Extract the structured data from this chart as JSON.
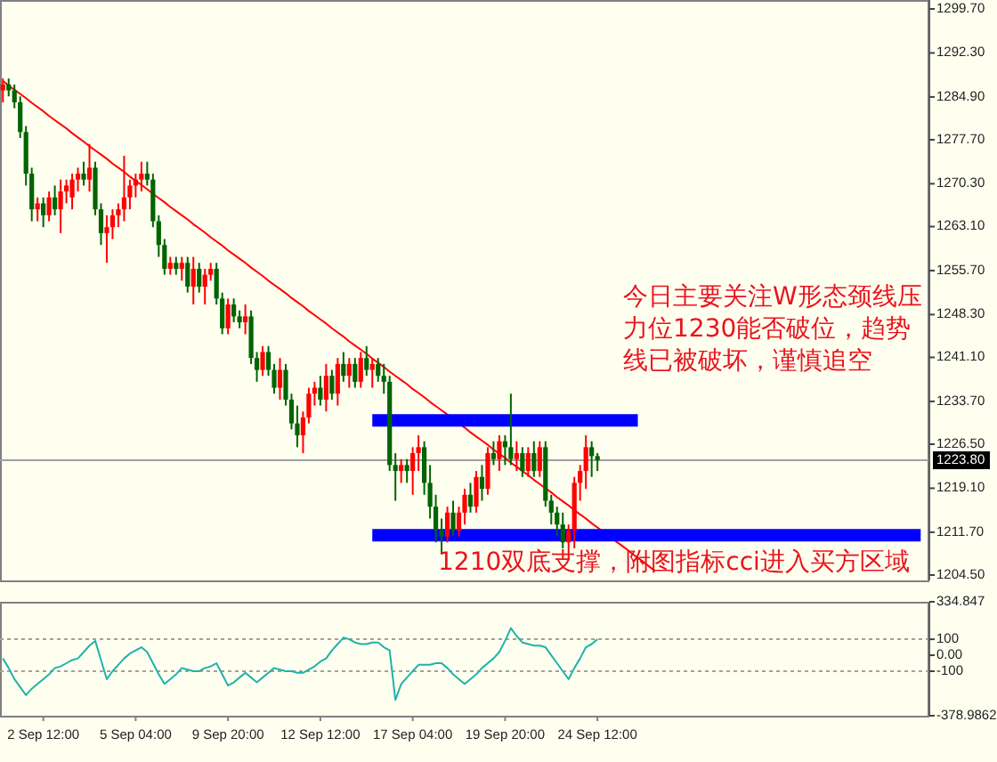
{
  "chart_data": [
    {
      "type": "candlestick",
      "tick_labels": "y",
      "categories": [
        null,
        null,
        null,
        null,
        null,
        null,
        null,
        null,
        null,
        null,
        null,
        null,
        null,
        null,
        null,
        null,
        null,
        null,
        null,
        null,
        null,
        null,
        null,
        null,
        null,
        null,
        null,
        null,
        null,
        null,
        null,
        null,
        null,
        null,
        null,
        null,
        null,
        null,
        null,
        null,
        null,
        null,
        null,
        null,
        null,
        null,
        null,
        null,
        null,
        null,
        null,
        null,
        null,
        null,
        null,
        null,
        null,
        null,
        null,
        null,
        null,
        null,
        null,
        null,
        null,
        null,
        null,
        null,
        null,
        null,
        null,
        null,
        null,
        null,
        null,
        null,
        null,
        null,
        null,
        null,
        null,
        null,
        null,
        null,
        null,
        null,
        null,
        null,
        null,
        null,
        null,
        null,
        null,
        null,
        null,
        null,
        null,
        null,
        null,
        null,
        null,
        null,
        null,
        null,
        null,
        null,
        null,
        null,
        null,
        null,
        null,
        null,
        null,
        null,
        null,
        null,
        null,
        null,
        null,
        null,
        null,
        null,
        null,
        null,
        null,
        null,
        null,
        null,
        null,
        null,
        null,
        null,
        null,
        null,
        null,
        null,
        null,
        null,
        null,
        null,
        null,
        null,
        null,
        null,
        null,
        null,
        null,
        null,
        null,
        null,
        null,
        null,
        null,
        null,
        null,
        null,
        null,
        null,
        null,
        null,
        null
      ],
      "ohlc": [
        [
          1286,
          1288,
          1284,
          1287
        ],
        [
          1287,
          1288,
          1285,
          1286
        ],
        [
          1286,
          1287,
          1283,
          1284
        ],
        [
          1284,
          1285,
          1278,
          1279
        ],
        [
          1279,
          1280,
          1270,
          1272
        ],
        [
          1272,
          1273,
          1264,
          1266
        ],
        [
          1266,
          1268,
          1264,
          1267
        ],
        [
          1267,
          1268,
          1263,
          1265
        ],
        [
          1265,
          1269,
          1264,
          1268
        ],
        [
          1268,
          1270,
          1265,
          1266
        ],
        [
          1266,
          1271,
          1262,
          1269
        ],
        [
          1269,
          1271,
          1267,
          1270
        ],
        [
          1268,
          1272,
          1266,
          1271
        ],
        [
          1271,
          1273,
          1269,
          1272
        ],
        [
          1272,
          1274,
          1270,
          1271
        ],
        [
          1271,
          1277,
          1269,
          1273
        ],
        [
          1273,
          1274,
          1265,
          1266
        ],
        [
          1266,
          1267,
          1260,
          1262
        ],
        [
          1262,
          1265,
          1257,
          1263
        ],
        [
          1263,
          1266,
          1261,
          1265
        ],
        [
          1265,
          1267,
          1263,
          1266
        ],
        [
          1266,
          1275,
          1264,
          1268
        ],
        [
          1268,
          1271,
          1266,
          1270
        ],
        [
          1270,
          1272,
          1268,
          1271
        ],
        [
          1271,
          1274,
          1269,
          1272
        ],
        [
          1272,
          1274,
          1270,
          1271
        ],
        [
          1271,
          1272,
          1263,
          1264
        ],
        [
          1264,
          1265,
          1258,
          1260
        ],
        [
          1260,
          1261,
          1255,
          1256
        ],
        [
          1256,
          1258,
          1255,
          1257
        ],
        [
          1257,
          1258,
          1255,
          1256
        ],
        [
          1256,
          1258,
          1254,
          1257
        ],
        [
          1257,
          1258,
          1252,
          1253
        ],
        [
          1253,
          1258,
          1250,
          1256
        ],
        [
          1256,
          1257,
          1252,
          1253
        ],
        [
          1253,
          1256,
          1250,
          1255
        ],
        [
          1255,
          1257,
          1254,
          1256
        ],
        [
          1256,
          1257,
          1250,
          1251
        ],
        [
          1251,
          1252,
          1245,
          1246
        ],
        [
          1246,
          1251,
          1245,
          1250
        ],
        [
          1250,
          1251,
          1247,
          1248
        ],
        [
          1248,
          1249,
          1246,
          1247
        ],
        [
          1247,
          1250,
          1245,
          1248
        ],
        [
          1248,
          1249,
          1240,
          1241
        ],
        [
          1241,
          1242,
          1237,
          1239
        ],
        [
          1239,
          1243,
          1238,
          1242
        ],
        [
          1242,
          1243,
          1238,
          1239
        ],
        [
          1239,
          1240,
          1235,
          1236
        ],
        [
          1236,
          1241,
          1234,
          1239
        ],
        [
          1239,
          1240,
          1233,
          1234
        ],
        [
          1234,
          1235,
          1229,
          1230
        ],
        [
          1230,
          1233,
          1226,
          1228
        ],
        [
          1228,
          1232,
          1225,
          1231
        ],
        [
          1231,
          1236,
          1230,
          1235
        ],
        [
          1235,
          1237,
          1233,
          1236
        ],
        [
          1236,
          1238,
          1233,
          1234
        ],
        [
          1234,
          1240,
          1232,
          1238
        ],
        [
          1238,
          1239,
          1234,
          1235
        ],
        [
          1235,
          1241,
          1233,
          1240
        ],
        [
          1240,
          1242,
          1237,
          1238
        ],
        [
          1238,
          1241,
          1236,
          1240
        ],
        [
          1240,
          1241,
          1236,
          1237
        ],
        [
          1237,
          1242,
          1236,
          1241
        ],
        [
          1241,
          1243,
          1238,
          1239
        ],
        [
          1239,
          1241,
          1236,
          1240
        ],
        [
          1240,
          1241,
          1237,
          1238
        ],
        [
          1238,
          1240,
          1235,
          1237
        ],
        [
          1237,
          1238,
          1222,
          1223
        ],
        [
          1223,
          1225,
          1217,
          1222
        ],
        [
          1222,
          1224,
          1220,
          1223
        ],
        [
          1223,
          1224,
          1220,
          1222
        ],
        [
          1222,
          1226,
          1218,
          1225
        ],
        [
          1225,
          1228,
          1222,
          1226
        ],
        [
          1226,
          1227,
          1218,
          1220
        ],
        [
          1220,
          1223,
          1214,
          1216
        ],
        [
          1216,
          1218,
          1210,
          1212
        ],
        [
          1212,
          1214,
          1208,
          1211
        ],
        [
          1211,
          1216,
          1210,
          1215
        ],
        [
          1215,
          1217,
          1211,
          1212
        ],
        [
          1212,
          1216,
          1211,
          1215
        ],
        [
          1215,
          1219,
          1213,
          1218
        ],
        [
          1218,
          1220,
          1215,
          1216
        ],
        [
          1216,
          1222,
          1215,
          1221
        ],
        [
          1221,
          1223,
          1217,
          1219
        ],
        [
          1219,
          1226,
          1218,
          1225
        ],
        [
          1225,
          1227,
          1223,
          1224
        ],
        [
          1224,
          1228,
          1222,
          1227
        ],
        [
          1227,
          1228,
          1223,
          1226
        ],
        [
          1226,
          1235,
          1223,
          1224
        ],
        [
          1224,
          1227,
          1222,
          1225
        ],
        [
          1225,
          1226,
          1221,
          1222
        ],
        [
          1222,
          1226,
          1221,
          1225
        ],
        [
          1225,
          1227,
          1221,
          1222
        ],
        [
          1222,
          1227,
          1221,
          1226
        ],
        [
          1226,
          1227,
          1216,
          1217
        ],
        [
          1217,
          1218,
          1213,
          1215
        ],
        [
          1215,
          1216,
          1211,
          1213
        ],
        [
          1213,
          1215,
          1209,
          1210
        ],
        [
          1210,
          1213,
          1207,
          1212
        ],
        [
          1212,
          1221,
          1209,
          1220
        ],
        [
          1220,
          1223,
          1217,
          1222
        ],
        [
          1222,
          1228,
          1219,
          1226
        ],
        [
          1226,
          1227,
          1221,
          1224.5
        ],
        [
          1224.5,
          1225,
          1222,
          1223.8
        ],
        null,
        null,
        null,
        null,
        null,
        null,
        null,
        null,
        null,
        null,
        null,
        null,
        null,
        null,
        null,
        null,
        null,
        null,
        null,
        null,
        null,
        null,
        null,
        null,
        null,
        null,
        null,
        null,
        null,
        null,
        null,
        null,
        null,
        null,
        null,
        null,
        null,
        null,
        null,
        null,
        null,
        null,
        null,
        null,
        null,
        null,
        null,
        null,
        null,
        null,
        null,
        null,
        null,
        null,
        null,
        null,
        null
      ],
      "colors": [
        "#ff0000",
        "#006400",
        "#006400",
        "#006400",
        "#006400",
        "#006400",
        "#ff0000",
        "#006400",
        "#ff0000",
        "#006400",
        "#ff0000",
        "#ff0000",
        "#ff0000",
        "#ff0000",
        "#006400",
        "#ff0000",
        "#006400",
        "#006400",
        "#ff0000",
        "#ff0000",
        "#ff0000",
        "#ff0000",
        "#ff0000",
        "#ff0000",
        "#ff0000",
        "#006400",
        "#006400",
        "#006400",
        "#006400",
        "#ff0000",
        "#006400",
        "#ff0000",
        "#006400",
        "#ff0000",
        "#006400",
        "#ff0000",
        "#ff0000",
        "#006400",
        "#006400",
        "#ff0000",
        "#006400",
        "#006400",
        "#ff0000",
        "#006400",
        "#006400",
        "#ff0000",
        "#006400",
        "#006400",
        "#ff0000",
        "#006400",
        "#006400",
        "#006400",
        "#ff0000",
        "#ff0000",
        "#ff0000",
        "#006400",
        "#ff0000",
        "#006400",
        "#ff0000",
        "#006400",
        "#ff0000",
        "#006400",
        "#ff0000",
        "#006400",
        "#ff0000",
        "#006400",
        "#006400",
        "#006400",
        "#006400",
        "#ff0000",
        "#006400",
        "#ff0000",
        "#ff0000",
        "#006400",
        "#006400",
        "#006400",
        "#006400",
        "#ff0000",
        "#006400",
        "#ff0000",
        "#ff0000",
        "#006400",
        "#ff0000",
        "#006400",
        "#ff0000",
        "#006400",
        "#ff0000",
        "#006400",
        "#006400",
        "#ff0000",
        "#006400",
        "#ff0000",
        "#006400",
        "#ff0000",
        "#006400",
        "#006400",
        "#006400",
        "#006400",
        "#ff0000",
        "#ff0000",
        "#ff0000",
        "#ff0000",
        "#006400",
        "#006400",
        null,
        null,
        null,
        null,
        null,
        null,
        null,
        null,
        null,
        null,
        null,
        null,
        null,
        null,
        null,
        null,
        null,
        null,
        null,
        null,
        null,
        null,
        null,
        null,
        null,
        null,
        null,
        null,
        null,
        null,
        null,
        null,
        null,
        null,
        null,
        null,
        null,
        null,
        null,
        null,
        null,
        null,
        null,
        null,
        null,
        null,
        null,
        null,
        null,
        null,
        null,
        null,
        null,
        null,
        null,
        null,
        null
      ],
      "series": [
        {
          "type": "line",
          "color": "#ff0000",
          "values": [
            1287.6,
            1286.8,
            1286.1,
            1285.4,
            1284.7,
            1283.9,
            1283.2,
            1282.5,
            1281.7,
            1281.0,
            1280.3,
            1279.6,
            1278.8,
            1278.1,
            1277.4,
            1276.6,
            1275.9,
            1275.2,
            1274.5,
            1273.7,
            1273.0,
            1272.3,
            1271.5,
            1270.8,
            1270.1,
            1269.4,
            1268.6,
            1267.9,
            1267.2,
            1266.4,
            1265.7,
            1265.0,
            1264.3,
            1263.5,
            1262.8,
            1262.1,
            1261.3,
            1260.6,
            1259.9,
            1259.1,
            1258.4,
            1257.7,
            1257.0,
            1256.2,
            1255.5,
            1254.8,
            1254.0,
            1253.3,
            1252.6,
            1251.9,
            1251.1,
            1250.4,
            1249.7,
            1248.9,
            1248.2,
            1247.5,
            1246.8,
            1246.0,
            1245.3,
            1244.6,
            1243.8,
            1243.1,
            1242.4,
            1241.7,
            1240.9,
            1240.2,
            1239.5,
            1238.7,
            1238.0,
            1237.3,
            1236.6,
            1235.8,
            1235.1,
            1234.4,
            1233.6,
            1232.9,
            1232.2,
            1231.5,
            1230.7,
            1230.0,
            1229.3,
            1228.5,
            1227.8,
            1227.1,
            1226.4,
            1225.6,
            1224.9,
            1224.2,
            1223.4,
            1222.7,
            1222.0,
            1221.3,
            1220.5,
            1219.8,
            1219.1,
            1218.4,
            1217.6,
            1216.9,
            1216.2,
            1215.4,
            1214.7,
            1214.0,
            1213.2,
            1212.5,
            1211.8,
            1211.1,
            1210.3,
            1209.6,
            1208.9,
            1208.1,
            1207.4,
            1206.7,
            1205.9,
            1205.2,
            null,
            null,
            null,
            null,
            null,
            null,
            null,
            null,
            null,
            null,
            null,
            null,
            null,
            null,
            null,
            null,
            null,
            null,
            null,
            null,
            null,
            null,
            null,
            null,
            null,
            null,
            null,
            null,
            null,
            null,
            null,
            null,
            null,
            null,
            null,
            null,
            null,
            null,
            null,
            null,
            null,
            null,
            null,
            null,
            null,
            null,
            null
          ]
        },
        {
          "type": "line",
          "color": "#0000ff",
          "values": [
            null,
            null,
            null,
            null,
            null,
            null,
            null,
            null,
            null,
            null,
            null,
            null,
            null,
            null,
            null,
            null,
            null,
            null,
            null,
            null,
            null,
            null,
            null,
            null,
            null,
            null,
            null,
            null,
            null,
            null,
            null,
            null,
            null,
            null,
            null,
            null,
            null,
            null,
            null,
            null,
            null,
            null,
            null,
            null,
            null,
            null,
            null,
            null,
            null,
            null,
            null,
            null,
            null,
            null,
            null,
            null,
            null,
            null,
            null,
            null,
            null,
            null,
            null,
            null,
            1230.5,
            1230.5,
            1230.5,
            1230.5,
            1230.5,
            1230.5,
            1230.5,
            1230.5,
            1230.5,
            1230.5,
            1230.5,
            1230.5,
            1230.5,
            1230.5,
            1230.5,
            1230.5,
            1230.5,
            1230.5,
            1230.5,
            1230.5,
            1230.5,
            1230.5,
            1230.5,
            1230.5,
            1230.5,
            1230.5,
            1230.5,
            1230.5,
            1230.5,
            1230.5,
            1230.5,
            1230.5,
            1230.5,
            1230.5,
            1230.5,
            1230.5,
            1230.5,
            1230.5,
            1230.5,
            1230.5,
            1230.5,
            1230.5,
            1230.5,
            1230.5,
            1230.5,
            1230.5,
            1230.5,
            null,
            null,
            null,
            null,
            null,
            null,
            null,
            null,
            null,
            null,
            null,
            null,
            null,
            null,
            null,
            null,
            null,
            null,
            null,
            null,
            null,
            null,
            null,
            null,
            null,
            null,
            null,
            null,
            null,
            null,
            null,
            null,
            null,
            null,
            null,
            null,
            null,
            null,
            null,
            null,
            null,
            null,
            null,
            null,
            null,
            null,
            null,
            null,
            null,
            null
          ]
        },
        {
          "type": "line",
          "color": "#0000ff",
          "values": [
            null,
            null,
            null,
            null,
            null,
            null,
            null,
            null,
            null,
            null,
            null,
            null,
            null,
            null,
            null,
            null,
            null,
            null,
            null,
            null,
            null,
            null,
            null,
            null,
            null,
            null,
            null,
            null,
            null,
            null,
            null,
            null,
            null,
            null,
            null,
            null,
            null,
            null,
            null,
            null,
            null,
            null,
            null,
            null,
            null,
            null,
            null,
            null,
            null,
            null,
            null,
            null,
            null,
            null,
            null,
            null,
            null,
            null,
            null,
            null,
            null,
            null,
            null,
            null,
            1211.2,
            1211.2,
            1211.2,
            1211.2,
            1211.2,
            1211.2,
            1211.2,
            1211.2,
            1211.2,
            1211.2,
            1211.2,
            1211.2,
            1211.2,
            1211.2,
            1211.2,
            1211.2,
            1211.2,
            1211.2,
            1211.2,
            1211.2,
            1211.2,
            1211.2,
            1211.2,
            1211.2,
            1211.2,
            1211.2,
            1211.2,
            1211.2,
            1211.2,
            1211.2,
            1211.2,
            1211.2,
            1211.2,
            1211.2,
            1211.2,
            1211.2,
            1211.2,
            1211.2,
            1211.2,
            1211.2,
            1211.2,
            1211.2,
            1211.2,
            1211.2,
            1211.2,
            1211.2,
            1211.2,
            1211.2,
            1211.2,
            1211.2,
            1211.2,
            1211.2,
            1211.2,
            1211.2,
            1211.2,
            1211.2,
            1211.2,
            1211.2,
            1211.2,
            1211.2,
            1211.2,
            1211.2,
            1211.2,
            1211.2,
            1211.2,
            1211.2,
            1211.2,
            1211.2,
            1211.2,
            1211.2,
            1211.2,
            1211.2,
            1211.2,
            1211.2,
            1211.2,
            1211.2,
            1211.2,
            1211.2,
            1211.2,
            1211.2,
            1211.2,
            1211.2,
            1211.2,
            1211.2,
            1211.2,
            1211.2,
            1211.2,
            1211.2,
            1211.2,
            1211.2,
            1211.2,
            1211.2,
            1211.2,
            1211.2,
            1211.2,
            1211.2,
            null
          ]
        }
      ],
      "ylim": [
        1203.6,
        1301.2
      ],
      "yticks": [
        {
          "value": 1204.5,
          "label": "1204.50"
        },
        {
          "value": 1211.7,
          "label": "1211.70"
        },
        {
          "value": 1219.1,
          "label": "1219.10"
        },
        {
          "value": 1226.5,
          "label": "1226.50"
        },
        {
          "value": 1233.7,
          "label": "1233.70"
        },
        {
          "value": 1241.1,
          "label": "1241.10"
        },
        {
          "value": 1248.3,
          "label": "1248.30"
        },
        {
          "value": 1255.7,
          "label": "1255.70"
        },
        {
          "value": 1263.1,
          "label": "1263.10"
        },
        {
          "value": 1270.3,
          "label": "1270.30"
        },
        {
          "value": 1277.7,
          "label": "1277.70"
        },
        {
          "value": 1284.9,
          "label": "1284.90"
        },
        {
          "value": 1292.3,
          "label": "1292.30"
        },
        {
          "value": 1299.7,
          "label": "1299.70"
        }
      ],
      "ref_lines": [
        {
          "axis": "y",
          "value": 1223.8,
          "label": "1223.80",
          "color": "#a0a0a0"
        }
      ],
      "annotations": [
        "今日主要关注W形态颈线压力位1230能否破位，趋势线已被破坏，谨慎追空",
        "1210双底支撑，附图指标cci进入买方区域"
      ]
    },
    {
      "type": "line",
      "color": "#20b2aa",
      "categories": [
        null,
        null,
        null,
        null,
        null,
        null,
        null,
        "2 Sep 12:00",
        null,
        null,
        null,
        null,
        null,
        null,
        null,
        null,
        null,
        null,
        null,
        null,
        null,
        null,
        null,
        "5 Sep 04:00",
        null,
        null,
        null,
        null,
        null,
        null,
        null,
        null,
        null,
        null,
        null,
        null,
        null,
        null,
        null,
        "9 Sep 20:00",
        null,
        null,
        null,
        null,
        null,
        null,
        null,
        null,
        null,
        null,
        null,
        null,
        null,
        null,
        null,
        "12 Sep 12:00",
        null,
        null,
        null,
        null,
        null,
        null,
        null,
        null,
        null,
        null,
        null,
        null,
        null,
        null,
        null,
        "17 Sep 04:00",
        null,
        null,
        null,
        null,
        null,
        null,
        null,
        null,
        null,
        null,
        null,
        null,
        null,
        null,
        null,
        "19 Sep 20:00",
        null,
        null,
        null,
        null,
        null,
        null,
        null,
        null,
        null,
        null,
        null,
        null,
        null,
        null,
        null,
        "24 Sep 12:00",
        null,
        null,
        null,
        null,
        null,
        null,
        null,
        null,
        null,
        null,
        null,
        null,
        null,
        null,
        null,
        null,
        null,
        null,
        null,
        null,
        null,
        null,
        null,
        null,
        null,
        null,
        null,
        null,
        null,
        null,
        null,
        null,
        null,
        null,
        null,
        null,
        null,
        null,
        null,
        null,
        null,
        null,
        null,
        null,
        null,
        null,
        null,
        null,
        null,
        null,
        null,
        null,
        null,
        null,
        null,
        null,
        null
      ],
      "values": [
        -20,
        -80,
        -150,
        -200,
        -250,
        -210,
        -180,
        -150,
        -120,
        -80,
        -70,
        -50,
        -30,
        -20,
        20,
        60,
        90,
        -30,
        -150,
        -100,
        -60,
        -20,
        10,
        30,
        50,
        20,
        -50,
        -120,
        -180,
        -150,
        -120,
        -80,
        -90,
        -100,
        -100,
        -80,
        -70,
        -50,
        -120,
        -190,
        -170,
        -140,
        -110,
        -140,
        -170,
        -140,
        -110,
        -80,
        -90,
        -100,
        -100,
        -110,
        -110,
        -90,
        -70,
        -40,
        -20,
        30,
        70,
        110,
        100,
        80,
        70,
        70,
        80,
        80,
        50,
        30,
        -280,
        -180,
        -140,
        -100,
        -60,
        -60,
        -60,
        -50,
        -50,
        -80,
        -120,
        -150,
        -180,
        -150,
        -120,
        -80,
        -50,
        -20,
        20,
        90,
        170,
        120,
        80,
        70,
        60,
        60,
        50,
        0,
        -50,
        -100,
        -150,
        -80,
        -20,
        50,
        70,
        100,
        null,
        null,
        null,
        null,
        null,
        null,
        null,
        null,
        null,
        null,
        null,
        null,
        null,
        null,
        null,
        null,
        null,
        null,
        null,
        null,
        null,
        null,
        null,
        null,
        null,
        null,
        null,
        null,
        null,
        null,
        null,
        null,
        null,
        null,
        null,
        null,
        null,
        null,
        null,
        null,
        null,
        null,
        null,
        null,
        null,
        null,
        null,
        null,
        null,
        null,
        null,
        null,
        null,
        null,
        null,
        null,
        null
      ],
      "ylim": [
        -378.9862,
        334.847
      ],
      "yticks": [
        334.847,
        100,
        {
          "value": 0,
          "label": "0.00"
        },
        -100,
        -378.9862
      ],
      "ref_lines": [
        {
          "axis": "y",
          "value": 100,
          "color": "#a0a0a0",
          "line_style": "dotted"
        },
        {
          "axis": "y",
          "value": -100,
          "color": "#a0a0a0",
          "line_style": "dotted"
        }
      ]
    }
  ]
}
